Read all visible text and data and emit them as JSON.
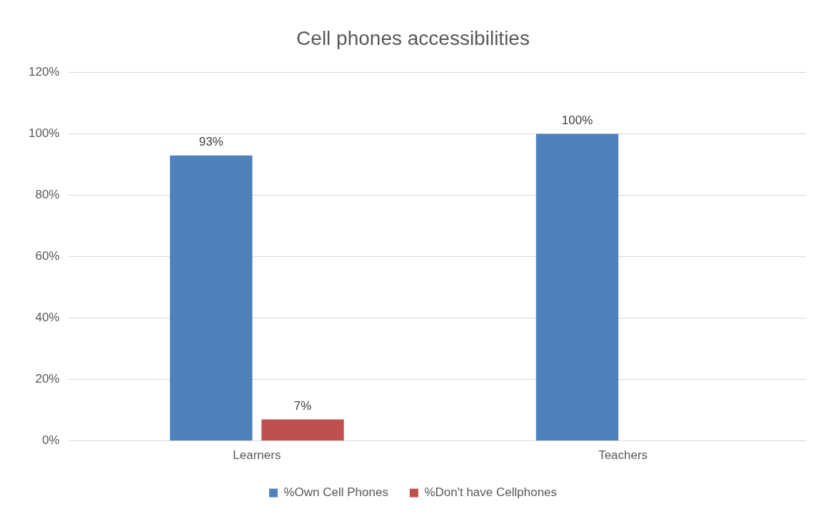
{
  "chart_data": {
    "type": "bar",
    "title": "Cell phones accessibilities",
    "categories": [
      "Learners",
      "Teachers"
    ],
    "series": [
      {
        "name": "%Own Cell Phones",
        "color": "#4f81bd",
        "values": [
          93,
          100
        ],
        "value_labels": [
          "93%",
          "100%"
        ]
      },
      {
        "name": "%Don't have Cellphones",
        "color": "#c0504d",
        "values": [
          7,
          null
        ],
        "value_labels": [
          "7%",
          null
        ]
      }
    ],
    "ylim": [
      0,
      120
    ],
    "yticks": [
      {
        "value": 0,
        "label": "0%"
      },
      {
        "value": 20,
        "label": "20%"
      },
      {
        "value": 40,
        "label": "40%"
      },
      {
        "value": 60,
        "label": "60%"
      },
      {
        "value": 80,
        "label": "80%"
      },
      {
        "value": 100,
        "label": "100%"
      },
      {
        "value": 120,
        "label": "120%"
      }
    ],
    "grid": "y",
    "legend": "bottom"
  }
}
